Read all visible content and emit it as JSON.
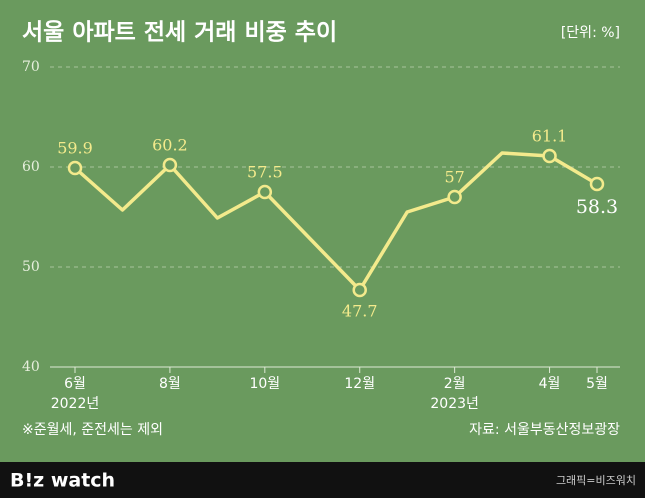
{
  "chart_data": {
    "type": "line",
    "title": "서울 아파트 전세 거래 비중 추이",
    "unit": "[단위: %]",
    "categories": [
      "6월",
      null,
      "8월",
      null,
      "10월",
      null,
      "12월",
      null,
      "2월",
      null,
      "4월",
      "5월"
    ],
    "years": [
      "2022년",
      null,
      null,
      null,
      null,
      null,
      null,
      null,
      "2023년",
      null,
      null,
      null
    ],
    "series": [
      {
        "name": "전세 거래 비중",
        "color": "#f3ea8c",
        "values": [
          59.9,
          55.7,
          60.2,
          54.9,
          57.5,
          52.6,
          47.7,
          55.5,
          57.0,
          61.4,
          61.1,
          58.3
        ]
      }
    ],
    "ylim": [
      40,
      70
    ],
    "yticks": [
      40,
      50,
      60,
      70
    ],
    "grid": true,
    "note": "※준월세, 준전세는 제외",
    "source": "자료: 서울부동산정보광장"
  },
  "footer": {
    "logo": "B!z watch",
    "credit": "그래픽=비즈워치"
  }
}
